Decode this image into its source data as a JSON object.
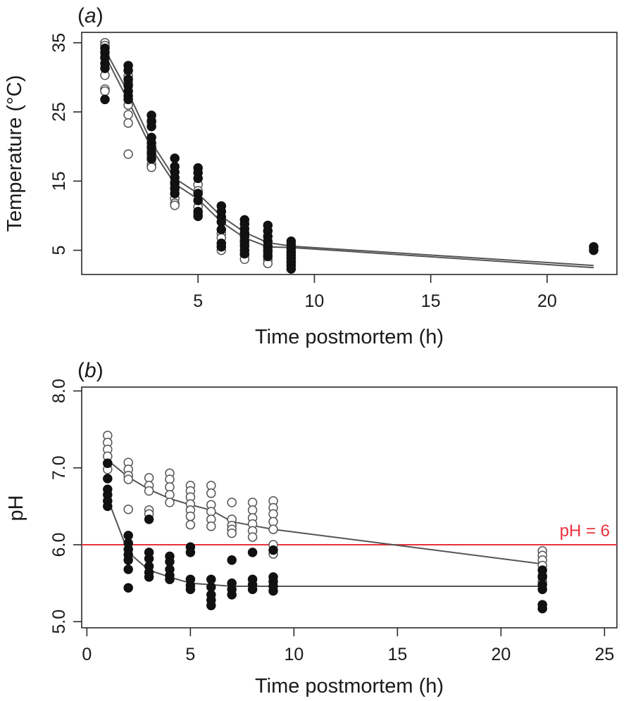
{
  "chart_data": [
    {
      "type": "scatter",
      "panel_label_paren_open": "(",
      "panel_label_letter": "a",
      "panel_label_paren_close": ")",
      "xlabel": "Time postmortem (h)",
      "ylabel": "Temperature (°C)",
      "xlim": [
        0,
        23
      ],
      "ylim": [
        1.5,
        36.5
      ],
      "xticks": [
        5,
        10,
        15,
        20
      ],
      "yticks": [
        5,
        15,
        25,
        35
      ],
      "grid": false,
      "legend": "none",
      "series": [
        {
          "marker": "filled",
          "points": [
            [
              1,
              34.2
            ],
            [
              1,
              33.6
            ],
            [
              1,
              32.8
            ],
            [
              1,
              32.0
            ],
            [
              1,
              31.3
            ],
            [
              1,
              26.8
            ],
            [
              2,
              31.7
            ],
            [
              2,
              31.0
            ],
            [
              2,
              29.7
            ],
            [
              2,
              28.8
            ],
            [
              2,
              28.0
            ],
            [
              2,
              27.3
            ],
            [
              2,
              26.8
            ],
            [
              3,
              24.5
            ],
            [
              3,
              23.7
            ],
            [
              3,
              22.9
            ],
            [
              3,
              21.3
            ],
            [
              3,
              20.5
            ],
            [
              3,
              19.8
            ],
            [
              3,
              19.0
            ],
            [
              3,
              18.2
            ],
            [
              4,
              18.3
            ],
            [
              4,
              17.1
            ],
            [
              4,
              16.3
            ],
            [
              4,
              15.5
            ],
            [
              4,
              14.8
            ],
            [
              4,
              14.0
            ],
            [
              4,
              13.2
            ],
            [
              5,
              16.9
            ],
            [
              5,
              16.2
            ],
            [
              5,
              15.4
            ],
            [
              5,
              13.2
            ],
            [
              5,
              12.2
            ],
            [
              5,
              10.6
            ],
            [
              5,
              9.9
            ],
            [
              6,
              11.4
            ],
            [
              6,
              10.6
            ],
            [
              6,
              9.8
            ],
            [
              6,
              9.1
            ],
            [
              6,
              8.0
            ],
            [
              6,
              6.0
            ],
            [
              6,
              5.5
            ],
            [
              7,
              9.4
            ],
            [
              7,
              8.8
            ],
            [
              7,
              8.1
            ],
            [
              7,
              7.5
            ],
            [
              7,
              7.0
            ],
            [
              7,
              6.3
            ],
            [
              7,
              5.6
            ],
            [
              7,
              5.0
            ],
            [
              7,
              4.5
            ],
            [
              8,
              8.6
            ],
            [
              8,
              7.8
            ],
            [
              8,
              7.0
            ],
            [
              8,
              6.3
            ],
            [
              8,
              5.6
            ],
            [
              8,
              4.9
            ],
            [
              8,
              4.1
            ],
            [
              9,
              6.3
            ],
            [
              9,
              5.8
            ],
            [
              9,
              5.3
            ],
            [
              9,
              4.8
            ],
            [
              9,
              4.3
            ],
            [
              9,
              3.8
            ],
            [
              9,
              3.3
            ],
            [
              9,
              2.8
            ],
            [
              9,
              2.3
            ],
            [
              22,
              5.5
            ],
            [
              22,
              5.0
            ]
          ]
        },
        {
          "marker": "open",
          "points": [
            [
              1,
              35.0
            ],
            [
              1,
              34.6
            ],
            [
              1,
              33.0
            ],
            [
              1,
              30.3
            ],
            [
              1,
              28.3
            ],
            [
              1,
              28.0
            ],
            [
              2,
              30.2
            ],
            [
              2,
              29.2
            ],
            [
              2,
              26.0
            ],
            [
              2,
              24.6
            ],
            [
              2,
              23.4
            ],
            [
              2,
              18.9
            ],
            [
              3,
              23.5
            ],
            [
              3,
              20.0
            ],
            [
              3,
              19.3
            ],
            [
              3,
              18.5
            ],
            [
              3,
              17.4
            ],
            [
              3,
              17.0
            ],
            [
              4,
              14.5
            ],
            [
              4,
              13.8
            ],
            [
              4,
              12.5
            ],
            [
              4,
              11.8
            ],
            [
              4,
              11.5
            ],
            [
              5,
              14.5
            ],
            [
              5,
              13.6
            ],
            [
              5,
              11.3
            ],
            [
              5,
              10.2
            ],
            [
              6,
              7.4
            ],
            [
              6,
              6.8
            ],
            [
              6,
              5.0
            ],
            [
              7,
              6.5
            ],
            [
              7,
              6.0
            ],
            [
              7,
              4.3
            ],
            [
              7,
              3.7
            ],
            [
              8,
              5.3
            ],
            [
              8,
              4.5
            ],
            [
              8,
              3.6
            ],
            [
              8,
              3.1
            ],
            [
              9,
              5.3
            ],
            [
              9,
              4.6
            ],
            [
              9,
              3.9
            ],
            [
              9,
              3.3
            ]
          ]
        },
        {
          "marker": "line",
          "points": [
            [
              1,
              34.0
            ],
            [
              2,
              27.8
            ],
            [
              3,
              20.6
            ],
            [
              4,
              15.4
            ],
            [
              5,
              13.2
            ],
            [
              6,
              9.9
            ],
            [
              7,
              7.6
            ],
            [
              8,
              6.1
            ],
            [
              9,
              5.6
            ],
            [
              22,
              2.8
            ]
          ]
        },
        {
          "marker": "line",
          "points": [
            [
              1,
              33.2
            ],
            [
              2,
              26.6
            ],
            [
              3,
              19.7
            ],
            [
              4,
              14.6
            ],
            [
              5,
              12.4
            ],
            [
              6,
              9.1
            ],
            [
              7,
              6.8
            ],
            [
              8,
              5.5
            ],
            [
              9,
              5.4
            ],
            [
              22,
              2.5
            ]
          ]
        }
      ]
    },
    {
      "type": "scatter",
      "panel_label_paren_open": "(",
      "panel_label_letter": "b",
      "panel_label_paren_close": ")",
      "xlabel": "Time postmortem (h)",
      "ylabel": "pH",
      "xlim": [
        -0.25,
        25.6
      ],
      "ylim": [
        4.92,
        8.05
      ],
      "xticks": [
        0,
        5,
        10,
        15,
        20,
        25
      ],
      "yticks": [
        "5.0",
        "6.0",
        "7.0",
        "8.0"
      ],
      "grid": false,
      "legend": "none",
      "reference_line": {
        "y": 6.0,
        "label": "pH = 6",
        "color": "#e8323c"
      },
      "series": [
        {
          "marker": "open",
          "points": [
            [
              1,
              7.42
            ],
            [
              1,
              7.33
            ],
            [
              1,
              7.24
            ],
            [
              1,
              7.15
            ],
            [
              1,
              7.06
            ],
            [
              1,
              6.98
            ],
            [
              2,
              7.07
            ],
            [
              2,
              6.98
            ],
            [
              2,
              6.9
            ],
            [
              2,
              6.85
            ],
            [
              2,
              6.46
            ],
            [
              3,
              6.87
            ],
            [
              3,
              6.77
            ],
            [
              3,
              6.7
            ],
            [
              3,
              6.45
            ],
            [
              3,
              6.4
            ],
            [
              4,
              6.93
            ],
            [
              4,
              6.85
            ],
            [
              4,
              6.75
            ],
            [
              4,
              6.65
            ],
            [
              4,
              6.55
            ],
            [
              5,
              6.77
            ],
            [
              5,
              6.7
            ],
            [
              5,
              6.62
            ],
            [
              5,
              6.53
            ],
            [
              5,
              6.45
            ],
            [
              5,
              6.37
            ],
            [
              5,
              6.26
            ],
            [
              6,
              6.77
            ],
            [
              6,
              6.67
            ],
            [
              6,
              6.52
            ],
            [
              6,
              6.43
            ],
            [
              6,
              6.33
            ],
            [
              6,
              6.24
            ],
            [
              7,
              6.55
            ],
            [
              7,
              6.33
            ],
            [
              7,
              6.25
            ],
            [
              7,
              6.2
            ],
            [
              7,
              6.15
            ],
            [
              8,
              6.55
            ],
            [
              8,
              6.45
            ],
            [
              8,
              6.35
            ],
            [
              8,
              6.27
            ],
            [
              8,
              6.18
            ],
            [
              8,
              6.1
            ],
            [
              9,
              6.57
            ],
            [
              9,
              6.48
            ],
            [
              9,
              6.4
            ],
            [
              9,
              6.3
            ],
            [
              9,
              6.2
            ],
            [
              9,
              6.0
            ],
            [
              9,
              5.88
            ],
            [
              22,
              5.92
            ],
            [
              22,
              5.86
            ],
            [
              22,
              5.8
            ],
            [
              22,
              5.73
            ],
            [
              22,
              5.6
            ],
            [
              22,
              5.52
            ]
          ]
        },
        {
          "marker": "filled",
          "points": [
            [
              1,
              7.06
            ],
            [
              1,
              6.86
            ],
            [
              1,
              6.72
            ],
            [
              1,
              6.65
            ],
            [
              1,
              6.57
            ],
            [
              1,
              6.5
            ],
            [
              2,
              6.12
            ],
            [
              2,
              6.02
            ],
            [
              2,
              5.94
            ],
            [
              2,
              5.87
            ],
            [
              2,
              5.8
            ],
            [
              2,
              5.68
            ],
            [
              2,
              5.44
            ],
            [
              3,
              5.9
            ],
            [
              3,
              5.82
            ],
            [
              3,
              5.72
            ],
            [
              3,
              5.64
            ],
            [
              3,
              5.58
            ],
            [
              3,
              6.33
            ],
            [
              4,
              5.85
            ],
            [
              4,
              5.78
            ],
            [
              4,
              5.68
            ],
            [
              4,
              5.6
            ],
            [
              4,
              5.55
            ],
            [
              5,
              5.97
            ],
            [
              5,
              5.9
            ],
            [
              5,
              5.55
            ],
            [
              5,
              5.47
            ],
            [
              5,
              5.42
            ],
            [
              6,
              5.55
            ],
            [
              6,
              5.45
            ],
            [
              6,
              5.35
            ],
            [
              6,
              5.28
            ],
            [
              6,
              5.21
            ],
            [
              7,
              5.8
            ],
            [
              7,
              5.5
            ],
            [
              7,
              5.42
            ],
            [
              7,
              5.35
            ],
            [
              8,
              5.9
            ],
            [
              8,
              5.55
            ],
            [
              8,
              5.48
            ],
            [
              8,
              5.42
            ],
            [
              9,
              5.93
            ],
            [
              9,
              5.58
            ],
            [
              9,
              5.52
            ],
            [
              9,
              5.46
            ],
            [
              9,
              5.4
            ],
            [
              22,
              5.67
            ],
            [
              22,
              5.58
            ],
            [
              22,
              5.48
            ],
            [
              22,
              5.42
            ],
            [
              22,
              5.22
            ],
            [
              22,
              5.17
            ]
          ]
        },
        {
          "marker": "line",
          "points": [
            [
              1,
              7.1
            ],
            [
              2,
              6.88
            ],
            [
              3,
              6.72
            ],
            [
              4,
              6.6
            ],
            [
              5,
              6.52
            ],
            [
              6,
              6.45
            ],
            [
              7,
              6.3
            ],
            [
              8,
              6.25
            ],
            [
              9,
              6.2
            ],
            [
              22,
              5.75
            ]
          ]
        },
        {
          "marker": "line",
          "points": [
            [
              1,
              6.6
            ],
            [
              2,
              5.9
            ],
            [
              3,
              5.67
            ],
            [
              4,
              5.58
            ],
            [
              5,
              5.5
            ],
            [
              6,
              5.48
            ],
            [
              7,
              5.46
            ],
            [
              8,
              5.46
            ],
            [
              9,
              5.46
            ],
            [
              22,
              5.46
            ]
          ]
        }
      ]
    }
  ]
}
